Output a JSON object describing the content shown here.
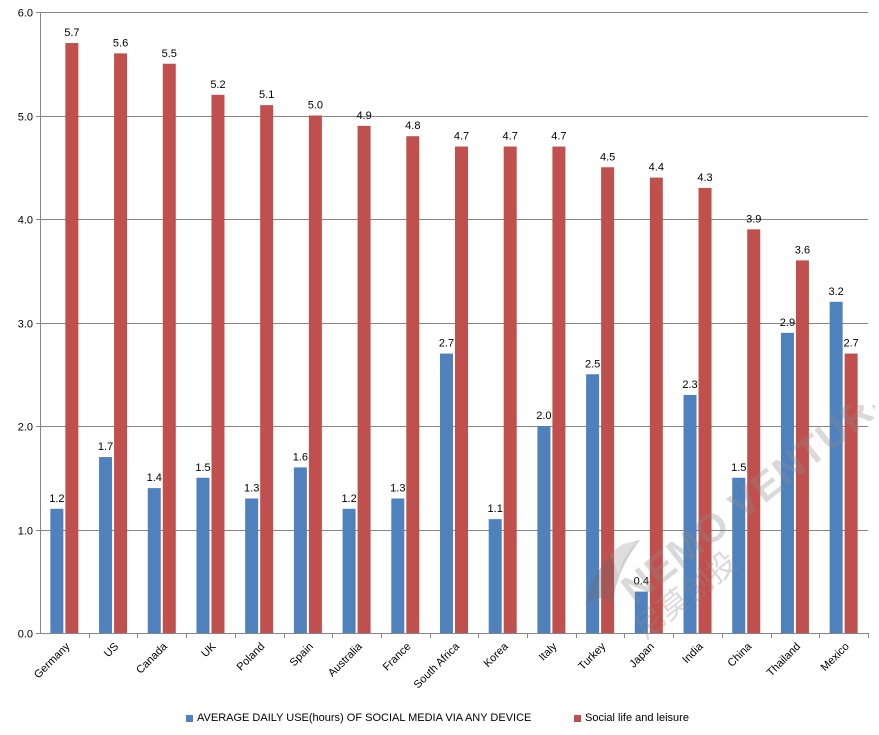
{
  "chart_data": {
    "type": "bar",
    "categories": [
      "Germany",
      "US",
      "Canada",
      "UK",
      "Poland",
      "Spain",
      "Australia",
      "France",
      "South Africa",
      "Korea",
      "Italy",
      "Turkey",
      "Japan",
      "India",
      "China",
      "Thailand",
      "Mexico"
    ],
    "series": [
      {
        "name": "AVERAGE DAILY USE(hours) OF SOCIAL MEDIA VIA ANY DEVICE",
        "color": "#4f81bd",
        "values": [
          1.2,
          1.7,
          1.4,
          1.5,
          1.3,
          1.6,
          1.2,
          1.3,
          2.7,
          1.1,
          2.0,
          2.5,
          0.4,
          2.3,
          1.5,
          2.9,
          3.2
        ],
        "labels": [
          "1.2",
          "1.7",
          "1.4",
          "1.5",
          "1.3",
          "1.6",
          "1.2",
          "1.3",
          "2.7",
          "1.1",
          "2.0",
          "2.5",
          "0.4",
          "2.3",
          "1.5",
          "2.9",
          "3.2"
        ]
      },
      {
        "name": "Social life and leisure",
        "color": "#c0504d",
        "values": [
          5.7,
          5.6,
          5.5,
          5.2,
          5.1,
          5.0,
          4.9,
          4.8,
          4.7,
          4.7,
          4.7,
          4.5,
          4.4,
          4.3,
          3.9,
          3.6,
          2.7
        ],
        "labels": [
          "5.7",
          "5.6",
          "5.5",
          "5.2",
          "5.1",
          "5.0",
          "4.9",
          "4.8",
          "4.7",
          "4.7",
          "4.7",
          "4.5",
          "4.4",
          "4.3",
          "3.9",
          "3.6",
          "2.7"
        ]
      }
    ],
    "yticks": [
      "0.0",
      "1.0",
      "2.0",
      "3.0",
      "4.0",
      "5.0",
      "6.0"
    ],
    "ylim": [
      0,
      6
    ],
    "grid": true,
    "legend_position": "bottom",
    "title": "",
    "xlabel": "",
    "ylabel": ""
  },
  "watermark": {
    "brand": "NEMO VENTURES",
    "chinese": "尼莫创投"
  }
}
